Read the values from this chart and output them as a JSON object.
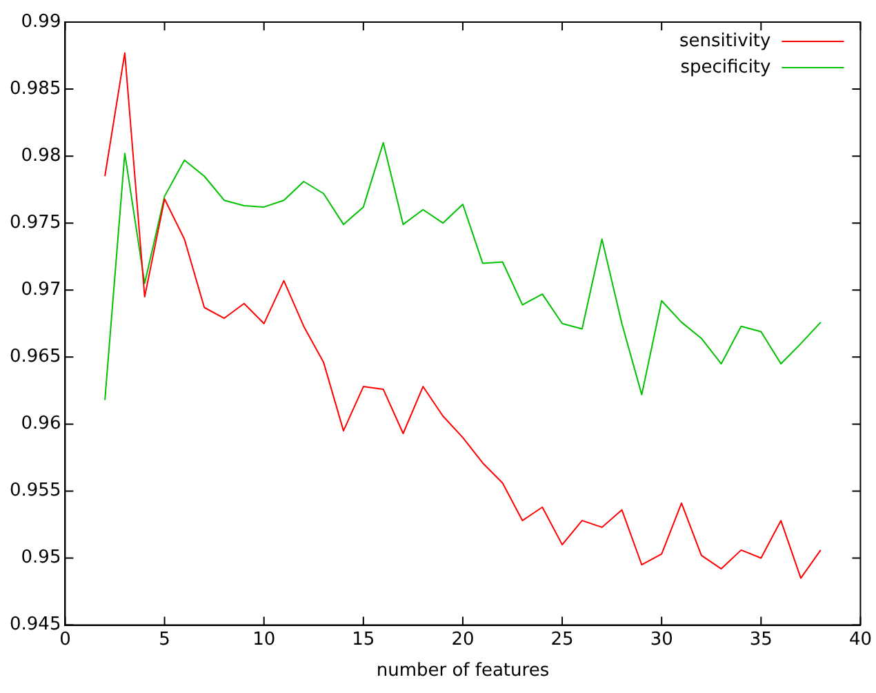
{
  "chart_data": {
    "type": "line",
    "xlabel": "number of features",
    "x": [
      2,
      3,
      4,
      5,
      6,
      7,
      8,
      9,
      10,
      11,
      12,
      13,
      14,
      15,
      16,
      17,
      18,
      19,
      20,
      21,
      22,
      23,
      24,
      25,
      26,
      27,
      28,
      29,
      30,
      31,
      32,
      33,
      34,
      35,
      36,
      37,
      38
    ],
    "series": [
      {
        "name": "sensitivity",
        "color": "#ff0000",
        "values": [
          0.9785,
          0.9877,
          0.9695,
          0.9768,
          0.9738,
          0.9687,
          0.9679,
          0.969,
          0.9675,
          0.9707,
          0.9673,
          0.9646,
          0.9595,
          0.9628,
          0.9626,
          0.9593,
          0.9628,
          0.9606,
          0.959,
          0.9571,
          0.9556,
          0.9528,
          0.9538,
          0.951,
          0.9528,
          0.9523,
          0.9536,
          0.9495,
          0.9503,
          0.9541,
          0.9502,
          0.9492,
          0.9506,
          0.95,
          0.9528,
          0.9485,
          0.9506
        ]
      },
      {
        "name": "specificity",
        "color": "#00c000",
        "values": [
          0.9618,
          0.9802,
          0.9705,
          0.977,
          0.9797,
          0.9785,
          0.9767,
          0.9763,
          0.9762,
          0.9767,
          0.9781,
          0.9772,
          0.9749,
          0.9762,
          0.981,
          0.9749,
          0.976,
          0.975,
          0.9764,
          0.972,
          0.9721,
          0.9689,
          0.9697,
          0.9675,
          0.9671,
          0.9738,
          0.9675,
          0.9622,
          0.9692,
          0.9676,
          0.9664,
          0.9645,
          0.9673,
          0.9669,
          0.9645,
          0.966,
          0.9676
        ]
      }
    ],
    "xlim": [
      0,
      40
    ],
    "xticks": [
      0,
      5,
      10,
      15,
      20,
      25,
      30,
      35,
      40
    ],
    "ylim": [
      0.945,
      0.99
    ],
    "yticks": [
      0.945,
      0.95,
      0.955,
      0.96,
      0.965,
      0.97,
      0.975,
      0.98,
      0.985,
      0.99
    ],
    "grid": false,
    "legend": "top right",
    "marker": "none"
  }
}
